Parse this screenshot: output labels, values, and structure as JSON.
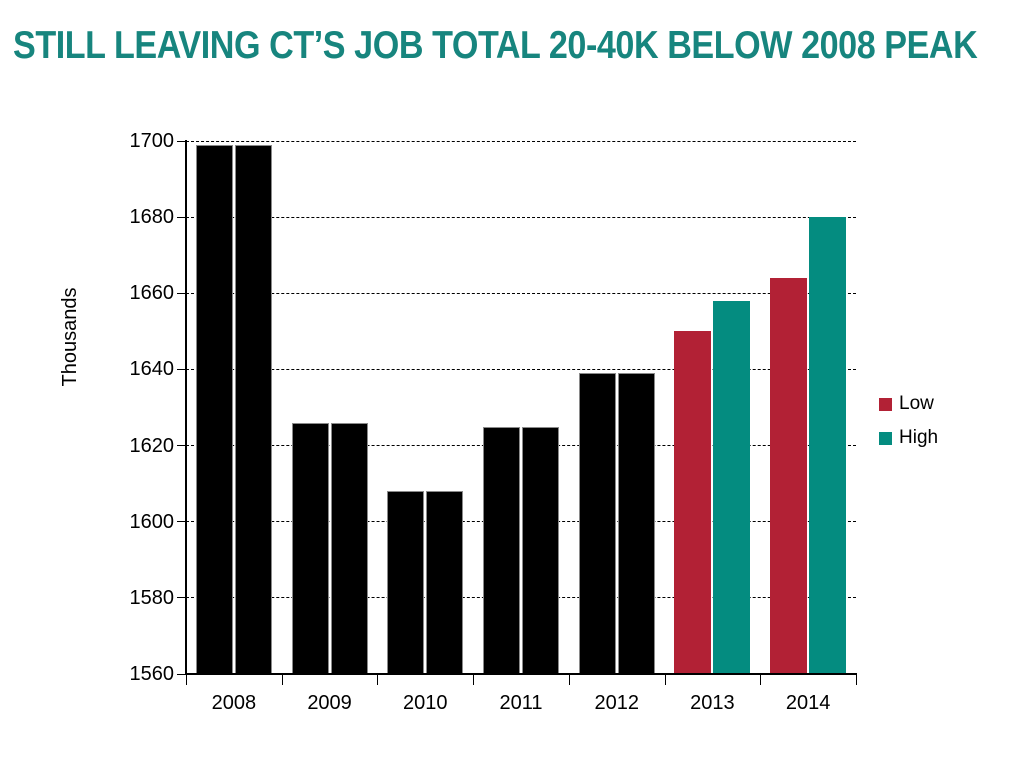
{
  "title": {
    "text": "STILL LEAVING CT’S JOB TOTAL 20-40K BELOW 2008 PEAK",
    "color": "#17857E"
  },
  "chart_data": {
    "type": "bar",
    "categories": [
      "2008",
      "2009",
      "2010",
      "2011",
      "2012",
      "2013",
      "2014"
    ],
    "series": [
      {
        "name": "Low",
        "color": "#B22135",
        "values": [
          1699,
          1626,
          1608,
          1625,
          1639,
          1650,
          1664
        ],
        "bar_colors": [
          "#000000",
          "#000000",
          "#000000",
          "#000000",
          "#000000",
          "#B22135",
          "#B22135"
        ]
      },
      {
        "name": "High",
        "color": "#048C80",
        "values": [
          1699,
          1626,
          1608,
          1625,
          1639,
          1658,
          1680
        ],
        "bar_colors": [
          "#000000",
          "#000000",
          "#000000",
          "#000000",
          "#000000",
          "#048C80",
          "#048C80"
        ]
      }
    ],
    "title": "STILL LEAVING CT’S JOB TOTAL 20-40K BELOW 2008 PEAK",
    "xlabel": "",
    "ylabel": "Thousands",
    "ylim": [
      1560,
      1700
    ],
    "ytick_step": 20,
    "ytick_labels": [
      "1560",
      "1580",
      "1600",
      "1620",
      "1640",
      "1660",
      "1680",
      "1700"
    ],
    "grid": "horizontal-dashed",
    "legend": {
      "position": "right-middle",
      "entries": [
        {
          "label": "Low",
          "color": "#B22135"
        },
        {
          "label": "High",
          "color": "#048C80"
        }
      ]
    }
  }
}
